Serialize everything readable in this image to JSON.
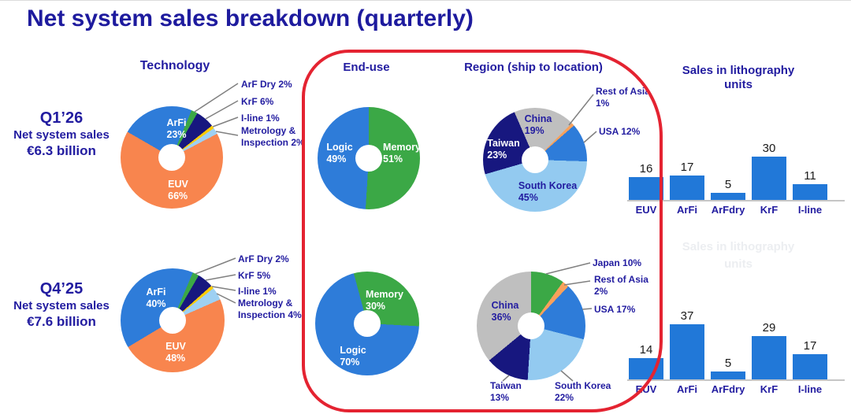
{
  "title": "Net system sales breakdown (quarterly)",
  "columns": {
    "technology": "Technology",
    "end_use": "End-use",
    "region": "Region (ship to location)",
    "units": "Sales in lithography units",
    "units_ghost": "Sales in lithography units"
  },
  "rows": [
    {
      "quarter": "Q1’26",
      "subtitle": "Net system sales",
      "amount": "€6.3 billion"
    },
    {
      "quarter": "Q4’25",
      "subtitle": "Net system sales",
      "amount": "€7.6 billion"
    }
  ],
  "colors": {
    "navy_text": "#221CA0",
    "blue": "#2E7CD9",
    "orange": "#F8854E",
    "green": "#3BA846",
    "dark_navy": "#17177F",
    "yellow": "#FFCC00",
    "light_blue": "#93CAF0",
    "metrology_light_blue": "#9ED0F2",
    "gray": "#BFBFBF",
    "rest_of_asia_orange": "#F9A15B",
    "bar_blue": "#2178D8",
    "red_outline": "#E42331",
    "leader_line": "#808080",
    "bar_value_text": "#1A1A1A"
  },
  "chart_data": [
    {
      "id": "q1_technology",
      "type": "pie",
      "quarter": "Q1'26",
      "column": "Technology",
      "start_angle": 300,
      "slices": [
        {
          "label": "ArFi",
          "pct": "23%",
          "value": 23,
          "color": "#2E7CD9"
        },
        {
          "label": "ArF Dry",
          "pct": "2%",
          "value": 2,
          "color": "#3BA846",
          "callout": "ArF Dry 2%"
        },
        {
          "label": "KrF",
          "pct": "6%",
          "value": 6,
          "color": "#17177F",
          "callout": "KrF 6%"
        },
        {
          "label": "I-line",
          "pct": "1%",
          "value": 1,
          "color": "#FFCC00",
          "callout": "I-line 1%"
        },
        {
          "label": "Metrology & Inspection",
          "pct": "2%",
          "value": 2,
          "color": "#9ED0F2",
          "callout": "Metrology &",
          "callout2": "Inspection 2%"
        },
        {
          "label": "EUV",
          "pct": "66%",
          "value": 66,
          "color": "#F8854E"
        }
      ]
    },
    {
      "id": "q1_end_use",
      "type": "pie",
      "quarter": "Q1'26",
      "column": "End-use",
      "start_angle": 0,
      "slices": [
        {
          "label": "Memory",
          "pct": "51%",
          "value": 51,
          "color": "#3BA846"
        },
        {
          "label": "Logic",
          "pct": "49%",
          "value": 49,
          "color": "#2E7CD9"
        }
      ]
    },
    {
      "id": "q1_region",
      "type": "pie",
      "quarter": "Q1'26",
      "column": "Region (ship to location)",
      "start_angle": 45,
      "slices": [
        {
          "label": "Rest of Asia",
          "pct": "1%",
          "value": 1,
          "color": "#F9A15B",
          "callout": "Rest of Asia",
          "callout2": "1%"
        },
        {
          "label": "USA",
          "pct": "12%",
          "value": 12,
          "color": "#2E7CD9",
          "callout": "USA 12%"
        },
        {
          "label": "South Korea",
          "pct": "45%",
          "value": 45,
          "color": "#93CAF0"
        },
        {
          "label": "Taiwan",
          "pct": "23%",
          "value": 23,
          "color": "#17177F"
        },
        {
          "label": "China",
          "pct": "19%",
          "value": 19,
          "color": "#BFBFBF"
        }
      ]
    },
    {
      "id": "q1_units",
      "type": "bar",
      "quarter": "Q1'26",
      "title": "Sales in lithography units",
      "categories": [
        "EUV",
        "ArFi",
        "ArFdry",
        "KrF",
        "I-line"
      ],
      "values": [
        16,
        17,
        5,
        30,
        11
      ]
    },
    {
      "id": "q4_technology",
      "type": "pie",
      "quarter": "Q4'25",
      "column": "Technology",
      "start_angle": 239,
      "slices": [
        {
          "label": "ArFi",
          "pct": "40%",
          "value": 40,
          "color": "#2E7CD9"
        },
        {
          "label": "ArF Dry",
          "pct": "2%",
          "value": 2,
          "color": "#3BA846",
          "callout": "ArF Dry 2%"
        },
        {
          "label": "KrF",
          "pct": "5%",
          "value": 5,
          "color": "#17177F",
          "callout": "KrF 5%"
        },
        {
          "label": "I-line",
          "pct": "1%",
          "value": 1,
          "color": "#FFCC00",
          "callout": "I-line 1%"
        },
        {
          "label": "Metrology & Inspection",
          "pct": "4%",
          "value": 4,
          "color": "#9ED0F2",
          "callout": "Metrology &",
          "callout2": "Inspection 4%"
        },
        {
          "label": "EUV",
          "pct": "48%",
          "value": 48,
          "color": "#F8854E"
        }
      ]
    },
    {
      "id": "q4_end_use",
      "type": "pie",
      "quarter": "Q4'25",
      "column": "End-use",
      "start_angle": 345,
      "slices": [
        {
          "label": "Memory",
          "pct": "30%",
          "value": 30,
          "color": "#3BA846"
        },
        {
          "label": "Logic",
          "pct": "70%",
          "value": 70,
          "color": "#2E7CD9"
        }
      ]
    },
    {
      "id": "q4_region",
      "type": "pie",
      "quarter": "Q4'25",
      "column": "Region (ship to location)",
      "start_angle": 0,
      "slices": [
        {
          "label": "Japan",
          "pct": "10%",
          "value": 10,
          "color": "#3BA846",
          "callout": "Japan 10%"
        },
        {
          "label": "Rest of Asia",
          "pct": "2%",
          "value": 2,
          "color": "#F9A15B",
          "callout": "Rest of Asia",
          "callout2": "2%"
        },
        {
          "label": "USA",
          "pct": "17%",
          "value": 17,
          "color": "#2E7CD9",
          "callout": "USA 17%"
        },
        {
          "label": "South Korea",
          "pct": "22%",
          "value": 22,
          "color": "#93CAF0",
          "callout": "South Korea",
          "callout2": "22%"
        },
        {
          "label": "Taiwan",
          "pct": "13%",
          "value": 13,
          "color": "#17177F",
          "callout": "Taiwan",
          "callout2": "13%"
        },
        {
          "label": "China",
          "pct": "36%",
          "value": 36,
          "color": "#BFBFBF"
        }
      ]
    },
    {
      "id": "q4_units",
      "type": "bar",
      "quarter": "Q4'25",
      "title": "Sales in lithography units",
      "categories": [
        "EUV",
        "ArFi",
        "ArFdry",
        "KrF",
        "I-line"
      ],
      "values": [
        14,
        37,
        5,
        29,
        17
      ]
    }
  ]
}
